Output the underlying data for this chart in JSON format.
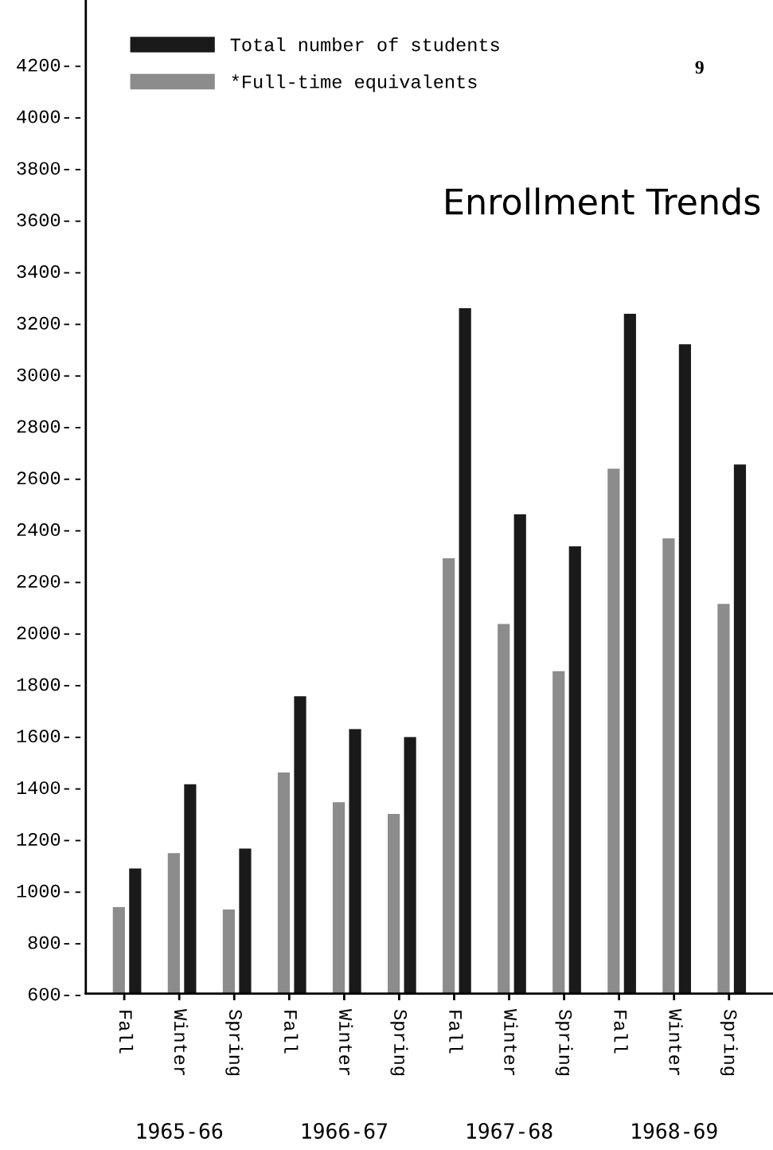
{
  "chart_data": {
    "type": "bar",
    "title": "Enrollment Trends",
    "categories": [
      "Fall",
      "Winter",
      "Spring",
      "Fall",
      "Winter",
      "Spring",
      "Fall",
      "Winter",
      "Spring",
      "Fall",
      "Winter",
      "Spring"
    ],
    "series": [
      {
        "name": "Total number of students",
        "color": "#1a1a1a",
        "values": [
          1085,
          1411,
          1162,
          1752,
          1625,
          1594,
          3256,
          2457,
          2333,
          3234,
          3116,
          2650
        ]
      },
      {
        "name": "*Full-time equivalents",
        "color": "#8c8c8c",
        "values": [
          935,
          1144,
          926,
          1457,
          1342,
          1296,
          2287,
          2032,
          1849,
          2634,
          2364,
          2110
        ]
      }
    ],
    "ylim": [
      600,
      4450
    ],
    "yticks": [
      {
        "value": 600,
        "label": "600--"
      },
      {
        "value": 800,
        "label": "800--"
      },
      {
        "value": 1000,
        "label": "1000--"
      },
      {
        "value": 1200,
        "label": "1200--"
      },
      {
        "value": 1400,
        "label": "1400--"
      },
      {
        "value": 1600,
        "label": "1600--"
      },
      {
        "value": 1800,
        "label": "1800--"
      },
      {
        "value": 2000,
        "label": "2000--"
      },
      {
        "value": 2200,
        "label": "2200--"
      },
      {
        "value": 2400,
        "label": "2400--"
      },
      {
        "value": 2600,
        "label": "2600--"
      },
      {
        "value": 2800,
        "label": "2800--"
      },
      {
        "value": 3000,
        "label": "3000--"
      },
      {
        "value": 3200,
        "label": "3200--"
      },
      {
        "value": 3400,
        "label": "3400--"
      },
      {
        "value": 3600,
        "label": "3600--"
      },
      {
        "value": 3800,
        "label": "3800--"
      },
      {
        "value": 4000,
        "label": "4000--"
      },
      {
        "value": 4200,
        "label": "4200--"
      }
    ],
    "annotations": [
      "1965-66",
      "1966-67",
      "1967-68",
      "1968-69",
      "9"
    ],
    "legend": "top left",
    "grid": false
  }
}
